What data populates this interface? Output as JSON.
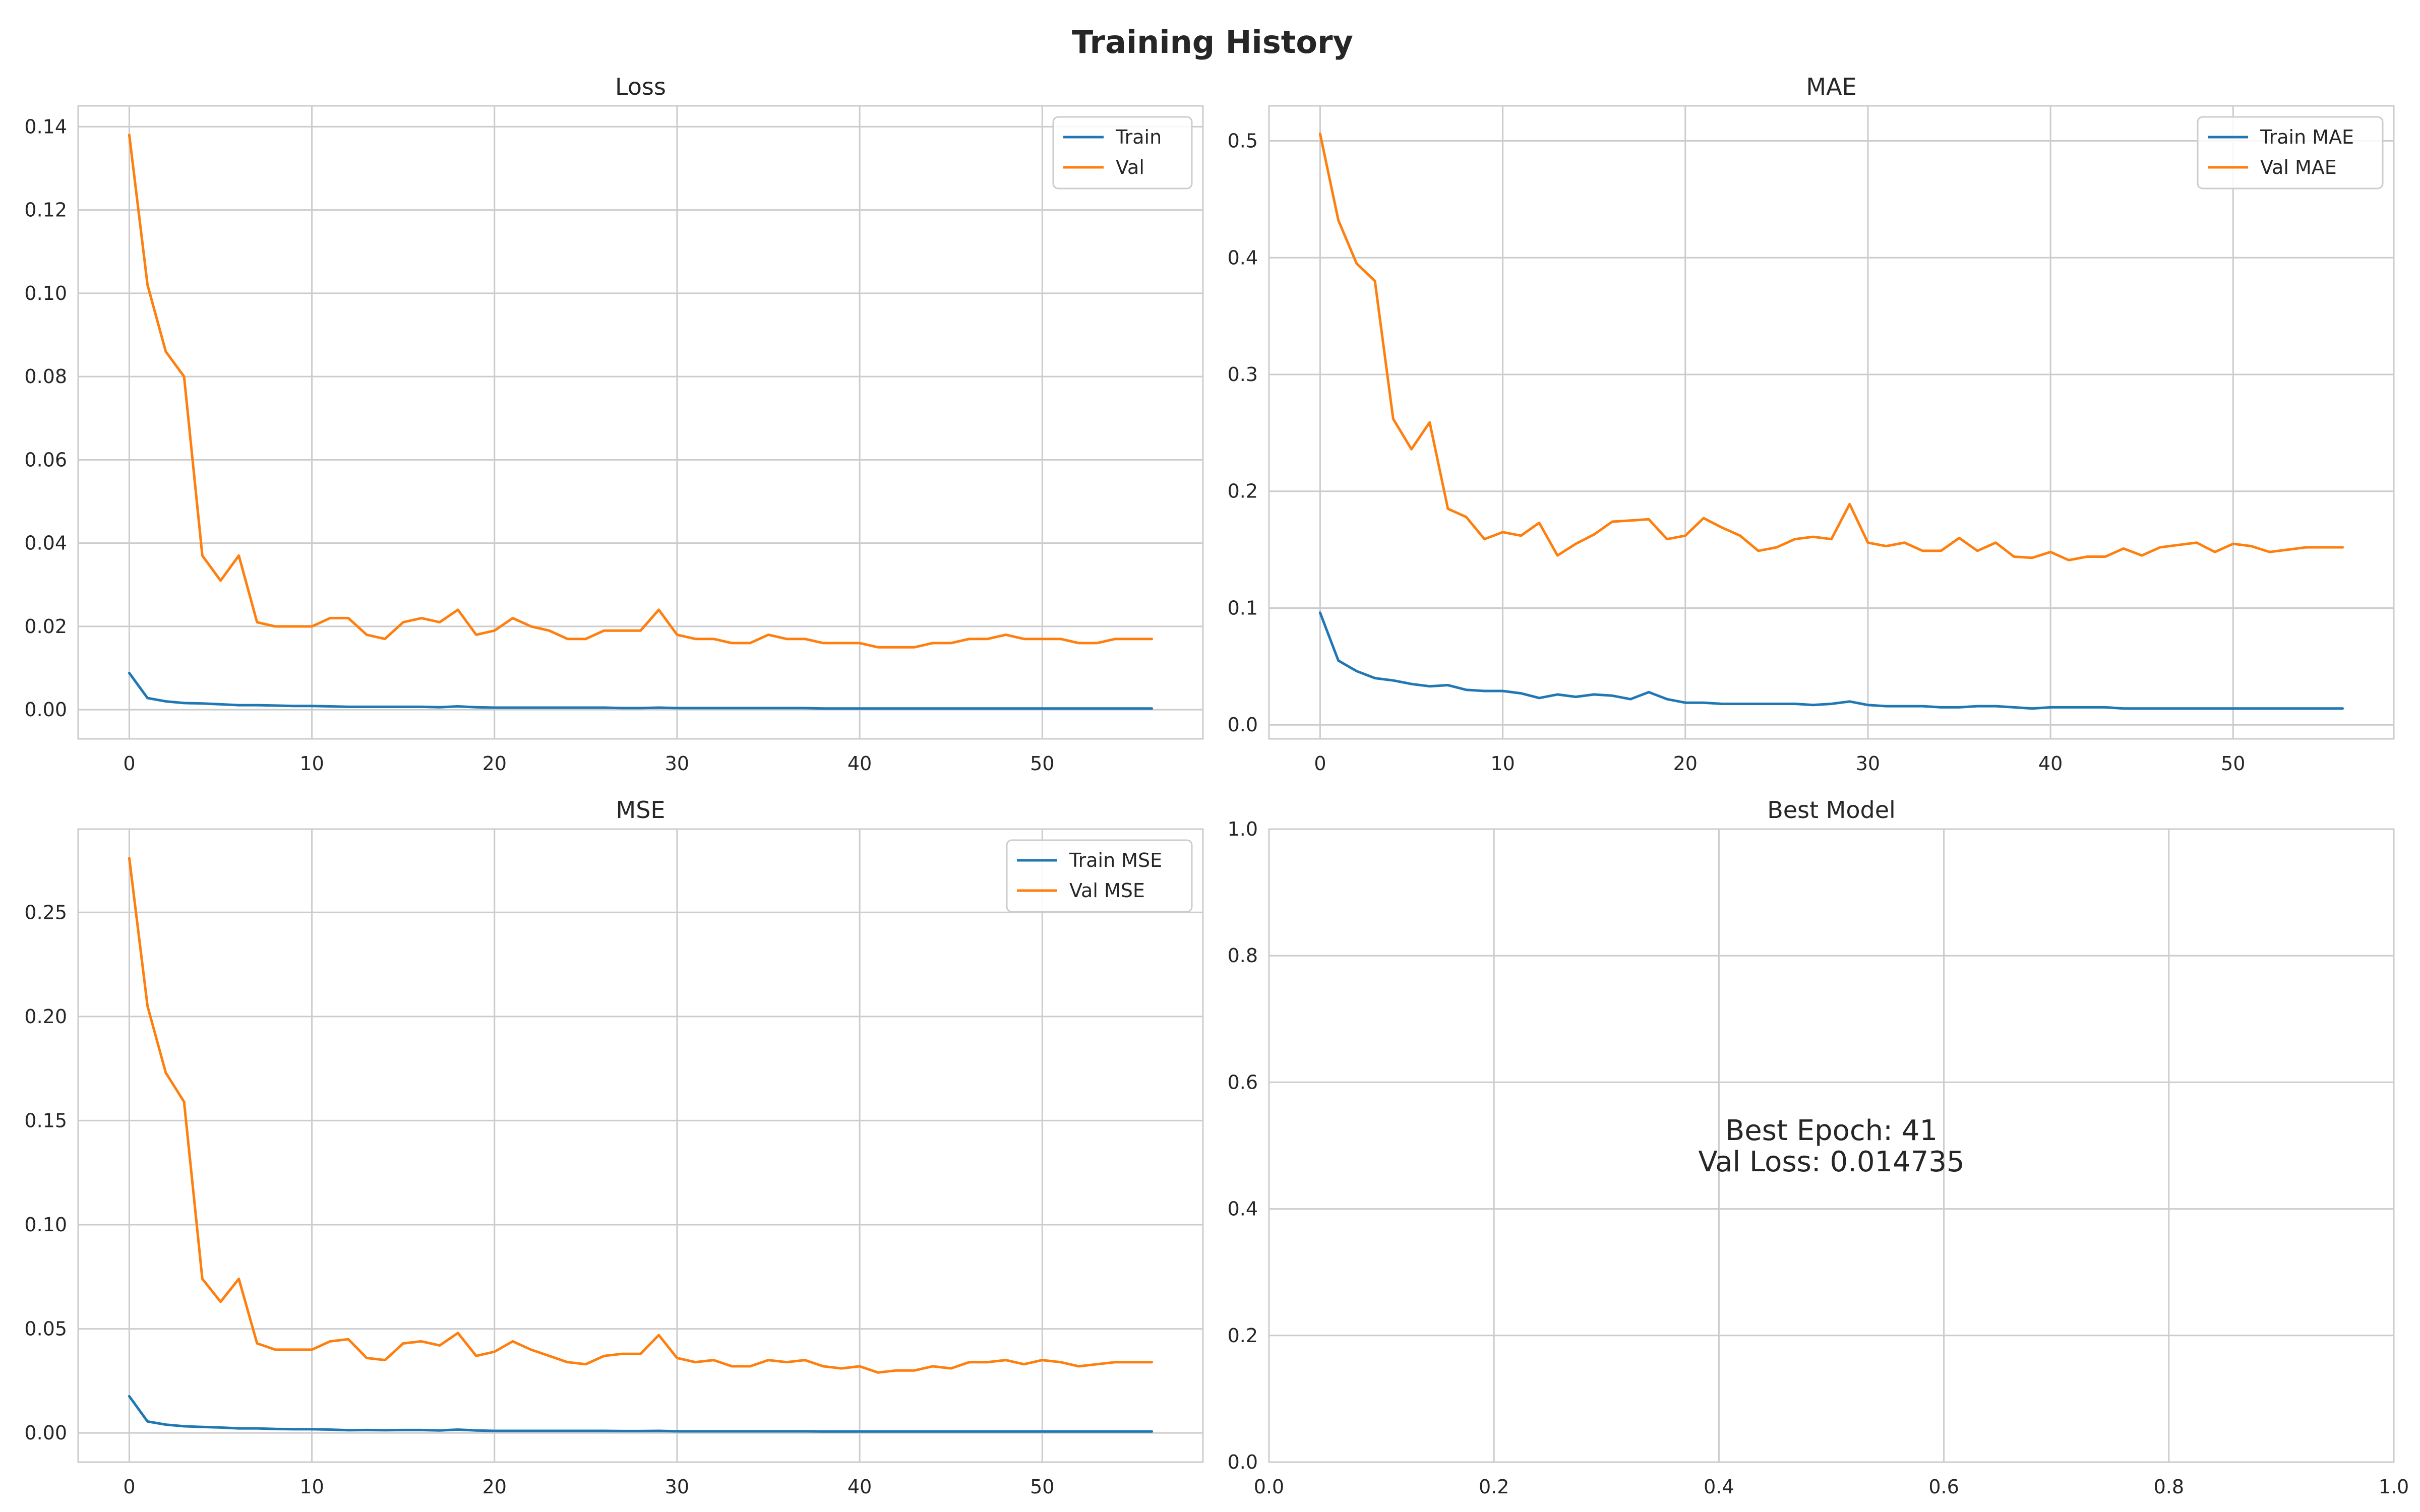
{
  "figure_title": "Training History",
  "colors": {
    "train": "#1f77b4",
    "val": "#ff7f0e",
    "grid": "#cccccc",
    "frame": "#cccccc",
    "text": "#262626"
  },
  "chart_data": [
    {
      "type": "line",
      "title": "Loss",
      "xlabel": "",
      "ylabel": "",
      "xlim": [
        -2.8,
        58.8
      ],
      "ylim": [
        -0.007,
        0.145
      ],
      "xticks": [
        0,
        10,
        20,
        30,
        40,
        50
      ],
      "yticks": [
        0.0,
        0.02,
        0.04,
        0.06,
        0.08,
        0.1,
        0.12,
        0.14
      ],
      "ytick_labels": [
        "0.00",
        "0.02",
        "0.04",
        "0.06",
        "0.08",
        "0.10",
        "0.12",
        "0.14"
      ],
      "grid": true,
      "legend": "upper-right",
      "series": [
        {
          "name": "Train",
          "color": "#1f77b4",
          "values": [
            0.0088,
            0.0028,
            0.002,
            0.0016,
            0.0015,
            0.0013,
            0.0011,
            0.0011,
            0.001,
            0.0009,
            0.0009,
            0.0008,
            0.0007,
            0.0007,
            0.0007,
            0.0007,
            0.0007,
            0.0006,
            0.0008,
            0.0006,
            0.0005,
            0.0005,
            0.0005,
            0.0005,
            0.0005,
            0.0005,
            0.0005,
            0.0004,
            0.0004,
            0.0005,
            0.0004,
            0.0004,
            0.0004,
            0.0004,
            0.0004,
            0.0004,
            0.0004,
            0.0004,
            0.0003,
            0.0003,
            0.0003,
            0.0003,
            0.0003,
            0.0003,
            0.0003,
            0.0003,
            0.0003,
            0.0003,
            0.0003,
            0.0003,
            0.0003,
            0.0003,
            0.0003,
            0.0003,
            0.0003,
            0.0003,
            0.0003
          ]
        },
        {
          "name": "Val",
          "color": "#ff7f0e",
          "values": [
            0.138,
            0.102,
            0.086,
            0.08,
            0.037,
            0.031,
            0.037,
            0.021,
            0.02,
            0.02,
            0.02,
            0.022,
            0.022,
            0.018,
            0.017,
            0.021,
            0.022,
            0.021,
            0.024,
            0.018,
            0.019,
            0.022,
            0.02,
            0.019,
            0.017,
            0.017,
            0.019,
            0.019,
            0.019,
            0.024,
            0.018,
            0.017,
            0.017,
            0.016,
            0.016,
            0.018,
            0.017,
            0.017,
            0.016,
            0.016,
            0.016,
            0.015,
            0.015,
            0.015,
            0.016,
            0.016,
            0.017,
            0.017,
            0.018,
            0.017,
            0.017,
            0.017,
            0.016,
            0.016,
            0.017,
            0.017,
            0.017
          ]
        }
      ]
    },
    {
      "type": "line",
      "title": "MAE",
      "xlabel": "",
      "ylabel": "",
      "xlim": [
        -2.8,
        58.8
      ],
      "ylim": [
        -0.012,
        0.53
      ],
      "xticks": [
        0,
        10,
        20,
        30,
        40,
        50
      ],
      "yticks": [
        0.0,
        0.1,
        0.2,
        0.3,
        0.4,
        0.5
      ],
      "ytick_labels": [
        "0.0",
        "0.1",
        "0.2",
        "0.3",
        "0.4",
        "0.5"
      ],
      "grid": true,
      "legend": "upper-right",
      "series": [
        {
          "name": "Train MAE",
          "color": "#1f77b4",
          "values": [
            0.096,
            0.055,
            0.046,
            0.04,
            0.038,
            0.035,
            0.033,
            0.034,
            0.03,
            0.029,
            0.029,
            0.027,
            0.023,
            0.026,
            0.024,
            0.026,
            0.025,
            0.022,
            0.028,
            0.022,
            0.019,
            0.019,
            0.018,
            0.018,
            0.018,
            0.018,
            0.018,
            0.017,
            0.018,
            0.02,
            0.017,
            0.016,
            0.016,
            0.016,
            0.015,
            0.015,
            0.016,
            0.016,
            0.015,
            0.014,
            0.015,
            0.015,
            0.015,
            0.015,
            0.014,
            0.014,
            0.014,
            0.014,
            0.014,
            0.014,
            0.014,
            0.014,
            0.014,
            0.014,
            0.014,
            0.014,
            0.014
          ]
        },
        {
          "name": "Val MAE",
          "color": "#ff7f0e",
          "values": [
            0.506,
            0.432,
            0.395,
            0.38,
            0.262,
            0.236,
            0.259,
            0.185,
            0.178,
            0.159,
            0.165,
            0.162,
            0.173,
            0.145,
            0.155,
            0.163,
            0.174,
            0.175,
            0.176,
            0.159,
            0.162,
            0.177,
            0.169,
            0.162,
            0.149,
            0.152,
            0.159,
            0.161,
            0.159,
            0.189,
            0.156,
            0.153,
            0.156,
            0.149,
            0.149,
            0.16,
            0.149,
            0.156,
            0.144,
            0.143,
            0.148,
            0.141,
            0.144,
            0.144,
            0.151,
            0.145,
            0.152,
            0.154,
            0.156,
            0.148,
            0.155,
            0.153,
            0.148,
            0.15,
            0.152,
            0.152,
            0.152
          ]
        }
      ]
    },
    {
      "type": "line",
      "title": "MSE",
      "xlabel": "",
      "ylabel": "",
      "xlim": [
        -2.8,
        58.8
      ],
      "ylim": [
        -0.014,
        0.29
      ],
      "xticks": [
        0,
        10,
        20,
        30,
        40,
        50
      ],
      "yticks": [
        0.0,
        0.05,
        0.1,
        0.15,
        0.2,
        0.25
      ],
      "ytick_labels": [
        "0.00",
        "0.05",
        "0.10",
        "0.15",
        "0.20",
        "0.25"
      ],
      "grid": true,
      "legend": "upper-right",
      "series": [
        {
          "name": "Train MSE",
          "color": "#1f77b4",
          "values": [
            0.0176,
            0.0055,
            0.004,
            0.0032,
            0.0029,
            0.0026,
            0.0022,
            0.0022,
            0.0019,
            0.0018,
            0.0018,
            0.0016,
            0.0013,
            0.0014,
            0.0013,
            0.0014,
            0.0014,
            0.0012,
            0.0016,
            0.0012,
            0.001,
            0.001,
            0.001,
            0.001,
            0.001,
            0.001,
            0.001,
            0.0009,
            0.0009,
            0.001,
            0.0008,
            0.0008,
            0.0008,
            0.0008,
            0.0008,
            0.0008,
            0.0008,
            0.0008,
            0.0007,
            0.0007,
            0.0007,
            0.0007,
            0.0007,
            0.0007,
            0.0007,
            0.0007,
            0.0007,
            0.0007,
            0.0007,
            0.0007,
            0.0007,
            0.0007,
            0.0007,
            0.0007,
            0.0007,
            0.0007,
            0.0007
          ]
        },
        {
          "name": "Val MSE",
          "color": "#ff7f0e",
          "values": [
            0.276,
            0.205,
            0.173,
            0.159,
            0.074,
            0.063,
            0.074,
            0.043,
            0.04,
            0.04,
            0.04,
            0.044,
            0.045,
            0.036,
            0.035,
            0.043,
            0.044,
            0.042,
            0.048,
            0.037,
            0.039,
            0.044,
            0.04,
            0.037,
            0.034,
            0.033,
            0.037,
            0.038,
            0.038,
            0.047,
            0.036,
            0.034,
            0.035,
            0.032,
            0.032,
            0.035,
            0.034,
            0.035,
            0.032,
            0.031,
            0.032,
            0.029,
            0.03,
            0.03,
            0.032,
            0.031,
            0.034,
            0.034,
            0.035,
            0.033,
            0.035,
            0.034,
            0.032,
            0.033,
            0.034,
            0.034,
            0.034
          ]
        }
      ]
    },
    {
      "type": "table",
      "title": "Best Model",
      "xlim": [
        0.0,
        1.0
      ],
      "ylim": [
        0.0,
        1.0
      ],
      "xticks": [
        0.0,
        0.2,
        0.4,
        0.6,
        0.8,
        1.0
      ],
      "xtick_labels": [
        "0.0",
        "0.2",
        "0.4",
        "0.6",
        "0.8",
        "1.0"
      ],
      "yticks": [
        0.0,
        0.2,
        0.4,
        0.6,
        0.8,
        1.0
      ],
      "ytick_labels": [
        "0.0",
        "0.2",
        "0.4",
        "0.6",
        "0.8",
        "1.0"
      ],
      "grid": true,
      "annotation": {
        "lines": [
          "Best Epoch: 41",
          "Val Loss: 0.014735"
        ],
        "x": 0.5,
        "y": 0.5
      }
    }
  ]
}
